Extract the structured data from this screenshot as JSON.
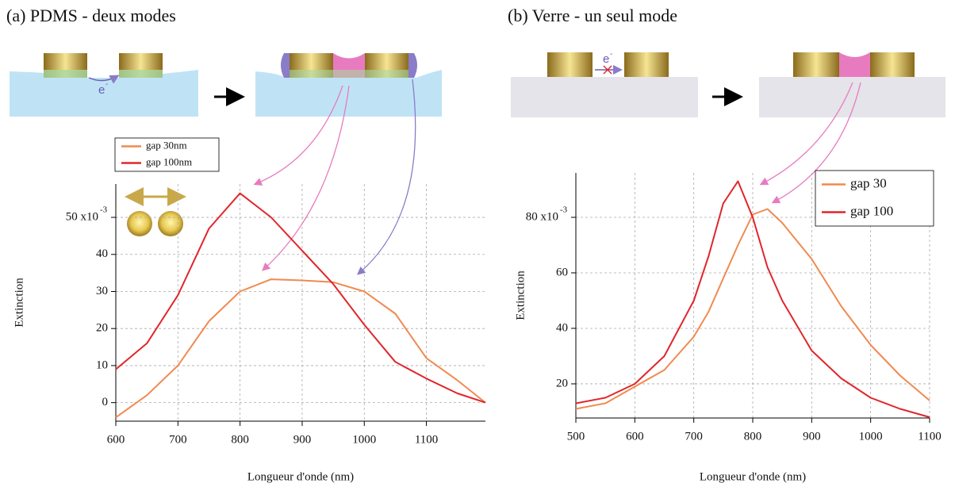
{
  "chart_data": [
    {
      "type": "line",
      "title": "(a) PDMS - deux modes",
      "x_label": "Longueur d'onde (nm)",
      "y_label": "Extinction",
      "x": [
        600,
        650,
        700,
        750,
        800,
        850,
        900,
        950,
        1000,
        1050,
        1100,
        1150,
        1195
      ],
      "series": [
        {
          "name": "gap 30nm",
          "color": "#f08a50",
          "values": [
            -4,
            2,
            10,
            22,
            30,
            33.3,
            33,
            32.5,
            30,
            24,
            12,
            6,
            0
          ]
        },
        {
          "name": "gap 100nm",
          "color": "#e0262b",
          "values": [
            9,
            16,
            29,
            47,
            56.5,
            50,
            41,
            32,
            21,
            11,
            6.5,
            2.5,
            0
          ]
        }
      ],
      "xlim": [
        600,
        1195
      ],
      "xticks": [
        600,
        700,
        800,
        900,
        1000,
        1100
      ],
      "ylim": [
        -5,
        59
      ],
      "yticks": [
        0,
        10,
        20,
        30,
        40,
        {
          "value": 50,
          "label": "50 x10"
        }
      ],
      "y_exponent": "-3",
      "grid": true,
      "legend": "outside-top-left",
      "diagram_labels": [
        "e",
        "-"
      ]
    },
    {
      "type": "line",
      "title": "(b) Verre - un seul mode",
      "x_label": "Longueur d'onde (nm)",
      "y_label": "Extinction",
      "x": [
        500,
        550,
        600,
        650,
        700,
        725,
        750,
        775,
        800,
        825,
        850,
        900,
        950,
        1000,
        1050,
        1100
      ],
      "series": [
        {
          "name": "gap 30",
          "color": "#f08a50",
          "values": [
            11,
            13,
            19,
            25,
            37,
            46,
            58,
            70,
            81,
            83,
            78,
            65,
            48,
            34,
            23,
            14
          ]
        },
        {
          "name": "gap 100",
          "color": "#e0262b",
          "values": [
            13,
            15,
            20,
            30,
            50,
            66,
            85,
            93,
            80,
            62,
            50,
            32,
            22,
            15,
            11,
            8
          ]
        }
      ],
      "xlim": [
        500,
        1100
      ],
      "xticks": [
        500,
        600,
        700,
        800,
        900,
        1000,
        1100
      ],
      "ylim": [
        7.7,
        96
      ],
      "yticks": [
        20,
        40,
        60,
        {
          "value": 80,
          "label": "80 x10"
        }
      ],
      "y_exponent": "-3",
      "grid": true,
      "legend": "top-right",
      "diagram_labels": [
        "e",
        "-"
      ]
    }
  ]
}
